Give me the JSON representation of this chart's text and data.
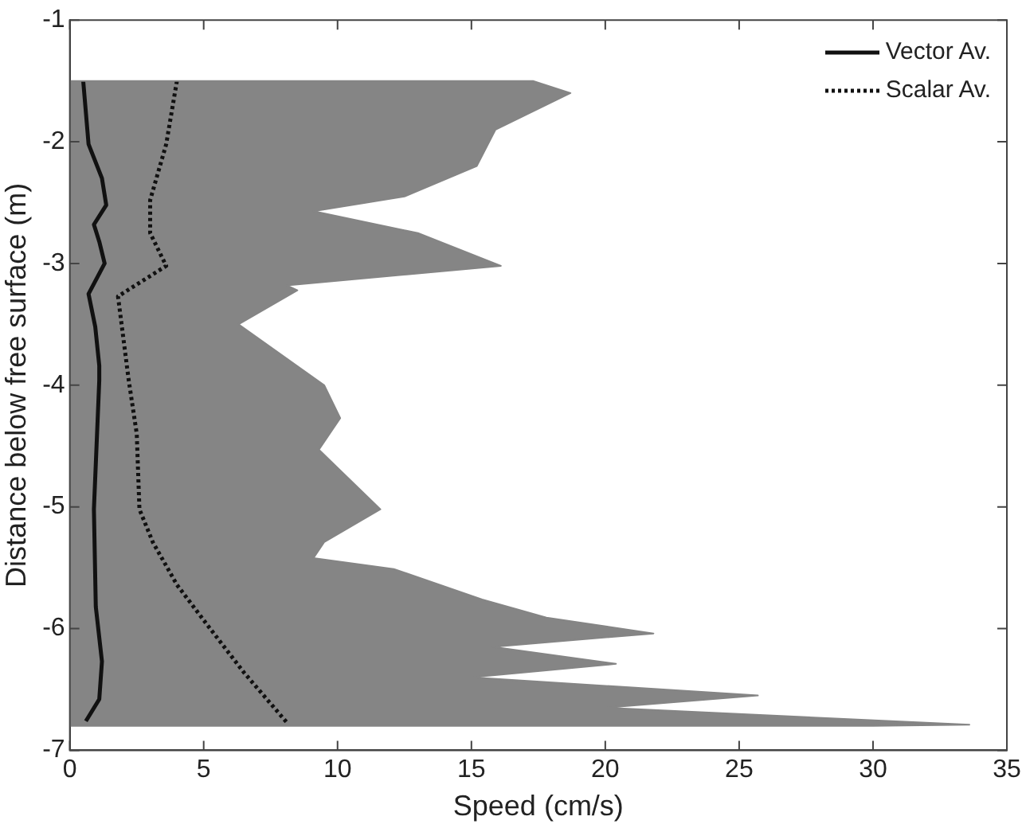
{
  "chart_data": {
    "type": "line",
    "xlabel": "Speed (cm/s)",
    "ylabel": "Distance below free surface (m)",
    "xlim": [
      0,
      35
    ],
    "xticks": [
      0,
      5,
      10,
      15,
      20,
      25,
      30,
      35
    ],
    "ylim": [
      -7,
      -1
    ],
    "yticks": [
      -7,
      -6,
      -5,
      -4,
      -3,
      -2,
      -1
    ],
    "legend": "top right",
    "series": [
      {
        "type": "area",
        "color": "#858585",
        "x": [
          0,
          17.3,
          18.7,
          15.9,
          15.2,
          12.5,
          9.1,
          13,
          16.1,
          8.1,
          8.5,
          6.3,
          9.5,
          10.1,
          9.3,
          11.6,
          9.5,
          9.1,
          12.1,
          15.4,
          17.8,
          21.8,
          15.8,
          20.4,
          15,
          25.7,
          20,
          33.6,
          30,
          0
        ],
        "values": [
          -1.5,
          -1.5,
          -1.6,
          -1.9,
          -2.2,
          -2.45,
          -2.57,
          -2.75,
          -3.02,
          -3.18,
          -3.22,
          -3.5,
          -4.0,
          -4.27,
          -4.53,
          -5.02,
          -5.29,
          -5.42,
          -5.51,
          -5.76,
          -5.91,
          -6.04,
          -6.15,
          -6.29,
          -6.4,
          -6.55,
          -6.65,
          -6.79,
          -6.8,
          -6.8
        ]
      },
      {
        "type": "line",
        "name": "Vector Av.",
        "color": "#111111",
        "line_style": "solid",
        "x": [
          0.5,
          0.7,
          1.2,
          1.36,
          0.9,
          1.1,
          1.3,
          0.7,
          0.95,
          1.1,
          1.1,
          0.9,
          0.97,
          1.2,
          1.1,
          0.6
        ],
        "values": [
          -1.5,
          -2.02,
          -2.3,
          -2.52,
          -2.68,
          -2.82,
          -3.0,
          -3.25,
          -3.52,
          -3.84,
          -3.96,
          -5.02,
          -5.82,
          -6.27,
          -6.58,
          -6.76
        ]
      },
      {
        "type": "line",
        "name": "Scalar Av.",
        "color": "#111111",
        "line_style": "dotted",
        "x": [
          4.0,
          3.6,
          3.0,
          3.0,
          3.6,
          1.8,
          2.2,
          2.5,
          2.6,
          3.1,
          4.0,
          5.1,
          6.5,
          8.1
        ],
        "values": [
          -1.5,
          -2.02,
          -2.48,
          -2.75,
          -3.02,
          -3.27,
          -3.96,
          -4.4,
          -5.02,
          -5.29,
          -5.64,
          -5.96,
          -6.36,
          -6.77
        ]
      }
    ]
  }
}
